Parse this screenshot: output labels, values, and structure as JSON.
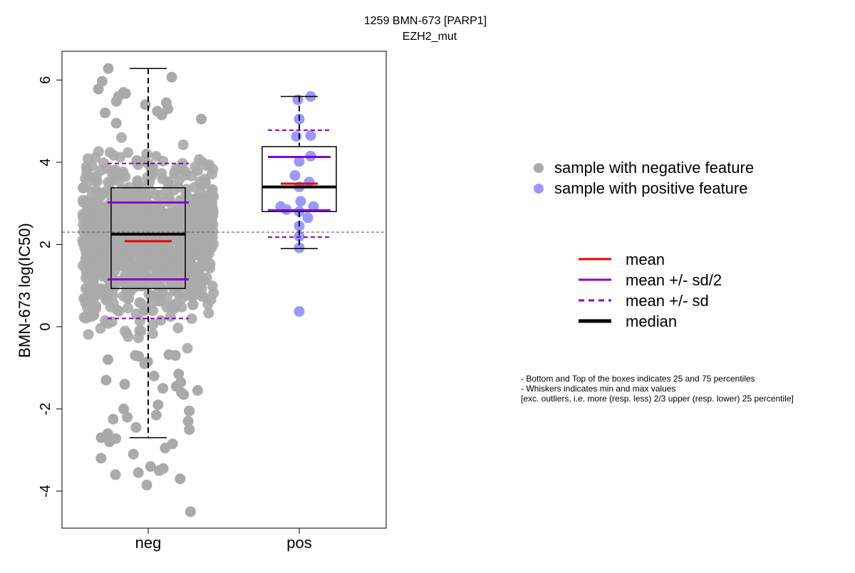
{
  "chart_data": {
    "type": "box",
    "title": "1259 BMN-673 [PARP1]",
    "subtitle": "EZH2_mut",
    "xlabel": "",
    "ylabel": "BMN-673 log(IC50)",
    "ylim": [
      -4.9,
      6.7
    ],
    "yticks": [
      -4,
      -2,
      0,
      2,
      4,
      6
    ],
    "categories": [
      "neg",
      "pos"
    ],
    "reference_line": 2.3,
    "groups": [
      {
        "name": "neg",
        "color": "#aaaaaa",
        "n_points": 1100,
        "min": -2.7,
        "q1": 0.93,
        "median": 2.25,
        "q3": 3.38,
        "max": 6.28,
        "mean": 2.08,
        "mean_minus_half_sd": 1.15,
        "mean_plus_half_sd": 3.02,
        "mean_minus_sd": 0.2,
        "mean_plus_sd": 3.97,
        "points": [
          6.28,
          6.07,
          5.97,
          5.78,
          5.7,
          5.67,
          5.6,
          5.48,
          5.45,
          5.4,
          5.3,
          5.24,
          5.2,
          5.15,
          5.05,
          4.95,
          -0.7,
          -0.72,
          -0.68,
          -0.7,
          -0.8,
          -0.85,
          -0.9,
          -1.15,
          -1.2,
          -1.3,
          -1.35,
          -1.4,
          -1.45,
          -1.5,
          -1.55,
          -1.6,
          -1.65,
          -1.9,
          -2.0,
          -2.05,
          -2.15,
          -2.2,
          -2.25,
          -2.3,
          -2.45,
          -2.5,
          -2.6,
          -2.7,
          -2.72,
          -2.8,
          -2.85,
          -2.95,
          -3.1,
          -3.2,
          -3.4,
          -3.45,
          -3.5,
          -3.55,
          -3.6,
          -3.7,
          -3.85,
          -4.5
        ]
      },
      {
        "name": "pos",
        "color": "#9999ff",
        "n_points": 20,
        "min": 1.9,
        "q1": 2.8,
        "median": 3.4,
        "q3": 4.38,
        "max": 5.6,
        "mean": 3.48,
        "mean_minus_half_sd": 2.83,
        "mean_plus_half_sd": 4.13,
        "mean_minus_sd": 2.18,
        "mean_plus_sd": 4.78,
        "points": [
          5.6,
          5.52,
          5.05,
          4.65,
          4.63,
          4.15,
          4.02,
          3.68,
          3.52,
          3.4,
          3.05,
          2.92,
          2.92,
          2.85,
          2.8,
          2.65,
          2.45,
          2.2,
          1.92,
          0.37
        ]
      }
    ],
    "point_legend": [
      {
        "label": "sample with negative feature",
        "color": "#aaaaaa"
      },
      {
        "label": "sample with positive feature",
        "color": "#9999ff"
      }
    ],
    "line_legend": [
      {
        "label": "mean",
        "color": "#ee0000",
        "style": "solid"
      },
      {
        "label": "mean +/- sd/2",
        "color": "#8800cc",
        "style": "solid"
      },
      {
        "label": "mean +/- sd",
        "color": "#8800cc",
        "style": "dashed"
      },
      {
        "label": "median",
        "color": "#000000",
        "style": "thick"
      }
    ],
    "legend_placement": "right",
    "notes": [
      "- Bottom and Top of the boxes indicates 25 and 75 percentiles",
      "- Whiskers indicates min and max values",
      "[exc. outliers, i.e. more (resp. less) 2/3 upper (resp. lower) 25 percentile]"
    ],
    "grid": false
  }
}
